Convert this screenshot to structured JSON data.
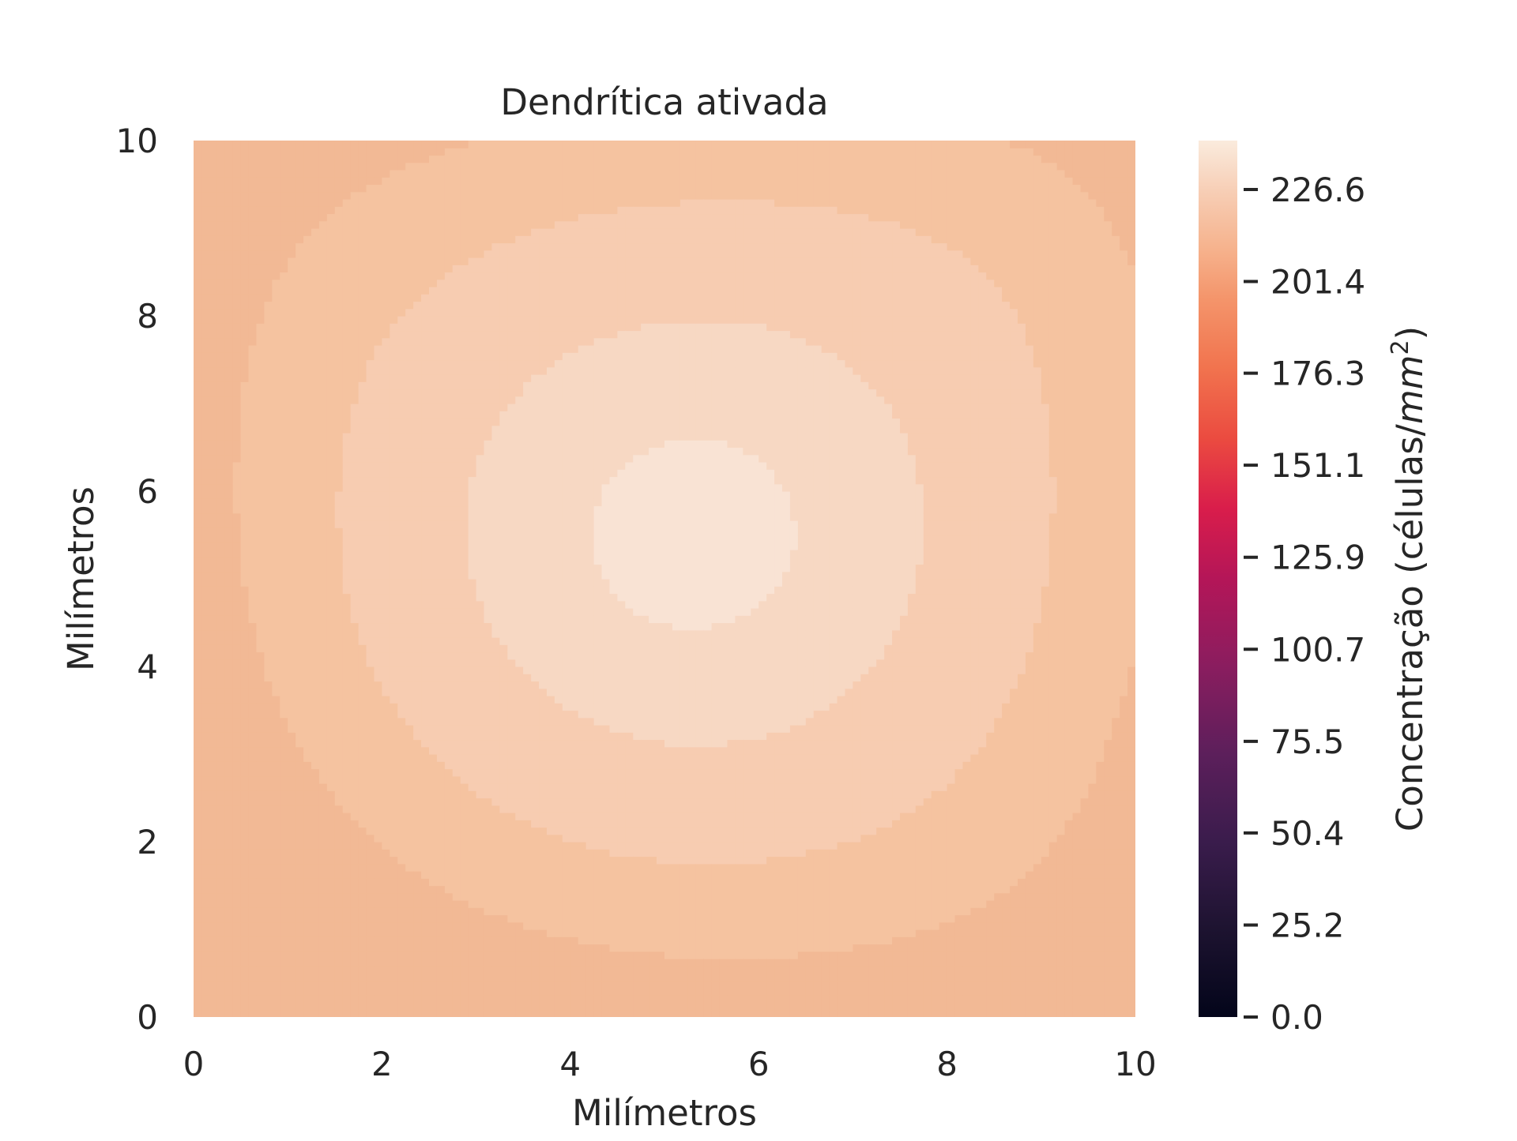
{
  "chart_data": {
    "type": "heatmap",
    "subtype": "filled-contour",
    "title": "Dendrítica ativada",
    "xlabel": "Milímetros",
    "ylabel": "Milímetros",
    "xlim": [
      0,
      10
    ],
    "ylim": [
      0,
      10
    ],
    "xticks": [
      0,
      2,
      4,
      6,
      8,
      10
    ],
    "yticks": [
      0,
      2,
      4,
      6,
      8,
      10
    ],
    "grid": false,
    "colormap": "rocket",
    "colorbar": {
      "label_prefix": "Concentração (células/",
      "label_unit": "mm",
      "label_exponent": "2",
      "label_suffix": ")",
      "min": 0.0,
      "max": 240,
      "ticks": [
        0.0,
        25.2,
        50.4,
        75.5,
        100.7,
        125.9,
        151.1,
        176.3,
        201.4,
        226.6
      ],
      "tick_labels": [
        "0.0",
        "25.2",
        "50.4",
        "75.5",
        "100.7",
        "125.9",
        "151.1",
        "176.3",
        "201.4",
        "226.6"
      ]
    },
    "field_summary": {
      "center": [
        5.3,
        5.5
      ],
      "center_value": 236,
      "corner_values": {
        "bottom-left": 215,
        "bottom-right": 217,
        "top-left": 217,
        "top-right": 218
      }
    },
    "contour_levels": [
      {
        "label": "band-1",
        "value": 218,
        "color": "#f5c3a0"
      },
      {
        "label": "band-2",
        "value": 222,
        "color": "#f7ccb1"
      },
      {
        "label": "band-3",
        "value": 227,
        "color": "#f7d8c3"
      },
      {
        "label": "band-4",
        "value": 232,
        "color": "#f9e3d4"
      },
      {
        "label": "band-5",
        "value": 236,
        "color": "#faeadf"
      }
    ]
  }
}
